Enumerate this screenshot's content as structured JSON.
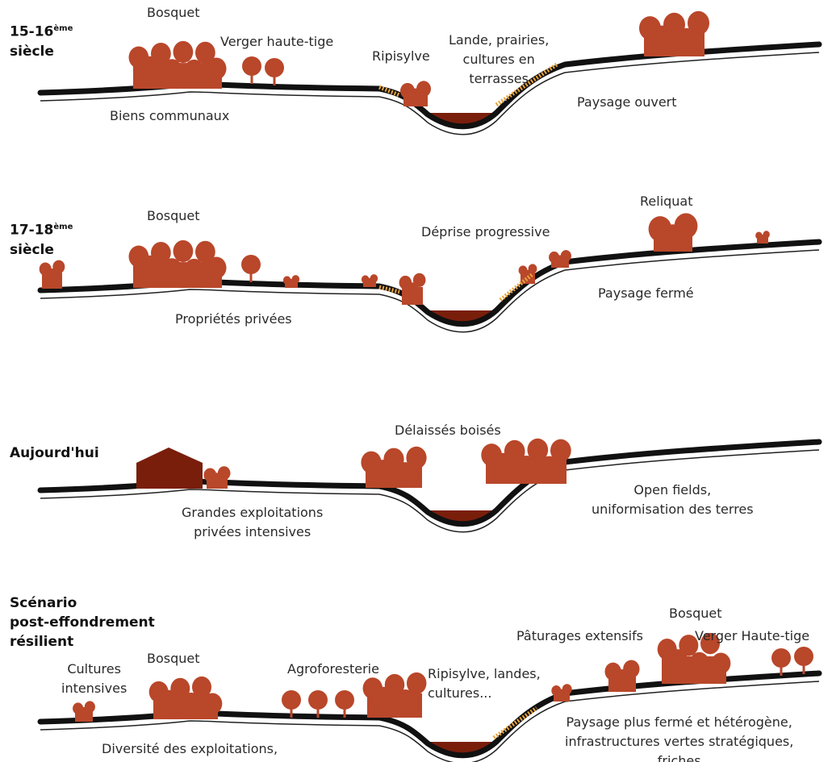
{
  "colors": {
    "vegetation": "#b9472a",
    "water": "#7a1e0c",
    "ground": "#111111",
    "scrub": "#e8a33a",
    "building": "#7a1e0c"
  },
  "sections": [
    {
      "era": "15-16",
      "era_sup": "ème",
      "era_line2": "siècle",
      "labels": [
        "Bosquet",
        "Verger haute-tige",
        "Ripisylve",
        "Lande, prairies,\ncultures en\nterrasses",
        "Biens communaux",
        "Paysage ouvert"
      ]
    },
    {
      "era": "17-18",
      "era_sup": "ème",
      "era_line2": "siècle",
      "labels": [
        "Bosquet",
        "Déprise progressive",
        "Reliquat",
        "Propriétés privées",
        "Paysage fermé"
      ]
    },
    {
      "era": "Aujourd'hui",
      "era_sup": "",
      "era_line2": "",
      "labels": [
        "Délaissés boisés",
        "Grandes exploitations\nprivées intensives",
        "Open fields,\nuniformisation des terres"
      ]
    },
    {
      "era": "Scénario\npost-effondrement\nrésilient",
      "era_sup": "",
      "era_line2": "",
      "labels": [
        "Cultures\nintensives",
        "Bosquet",
        "Agroforesterie",
        "Ripisylve, landes,\ncultures...",
        "Pâturages extensifs",
        "Bosquet",
        "Verger Haute-tige",
        "Paysage plus fermé et hétérogène,\ninfrastructures vertes stratégiques,\nfriches",
        "Diversité des exploitations,"
      ]
    }
  ]
}
